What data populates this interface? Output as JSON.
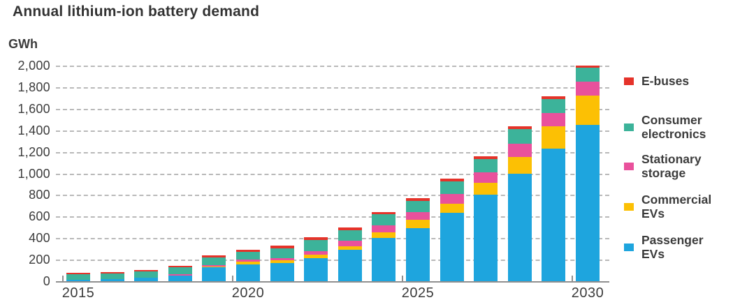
{
  "title": "Annual lithium-ion battery demand",
  "y_axis_unit": "GWh",
  "colors": {
    "passenger_evs": "#1ea5de",
    "commercial_evs": "#fcc004",
    "stationary_storage": "#e9519c",
    "consumer_electronics": "#3cb39a",
    "e_buses": "#e5332a",
    "gridline": "#b9b9b9",
    "axis": "#8f8f8f",
    "text": "#3c3c3c"
  },
  "legend": {
    "items": [
      {
        "label": "E-buses",
        "color": "#e5332a"
      },
      {
        "label": "Consumer electronics",
        "color": "#3cb39a"
      },
      {
        "label": "Stationary storage",
        "color": "#e9519c"
      },
      {
        "label": "Commercial EVs",
        "color": "#fcc004"
      },
      {
        "label": "Passenger EVs",
        "color": "#1ea5de"
      }
    ]
  },
  "chart_data": {
    "type": "bar",
    "stacked": true,
    "title": "Annual lithium-ion battery demand",
    "xlabel": "",
    "ylabel": "GWh",
    "ylim": [
      0,
      2000
    ],
    "ytick_step": 200,
    "ytick_labels": [
      "0",
      "200",
      "400",
      "600",
      "800",
      "1,000",
      "1,200",
      "1,400",
      "1,600",
      "1,800",
      "2,000"
    ],
    "grid": "horizontal-dashed",
    "legend_position": "right",
    "categories": [
      2015,
      2016,
      2017,
      2018,
      2019,
      2020,
      2021,
      2022,
      2023,
      2024,
      2025,
      2026,
      2027,
      2028,
      2029,
      2030
    ],
    "xtick_labels": [
      "2015",
      "2020",
      "2025",
      "2030"
    ],
    "xtick_category_indices": [
      0,
      5,
      10,
      15
    ],
    "series": [
      {
        "name": "Passenger EVs",
        "color": "#1ea5de",
        "values": [
          10,
          20,
          35,
          55,
          130,
          155,
          170,
          215,
          290,
          400,
          490,
          635,
          800,
          1000,
          1230,
          1450
        ]
      },
      {
        "name": "Commercial EVs",
        "color": "#fcc004",
        "values": [
          0,
          0,
          0,
          0,
          5,
          25,
          25,
          30,
          35,
          55,
          80,
          85,
          110,
          150,
          205,
          270
        ]
      },
      {
        "name": "Stationary storage",
        "color": "#e9519c",
        "values": [
          0,
          0,
          0,
          10,
          15,
          20,
          20,
          35,
          50,
          65,
          70,
          90,
          100,
          125,
          125,
          130
        ]
      },
      {
        "name": "Consumer electronics",
        "color": "#3cb39a",
        "values": [
          55,
          50,
          55,
          65,
          70,
          70,
          90,
          100,
          100,
          100,
          105,
          115,
          125,
          135,
          130,
          130
        ]
      },
      {
        "name": "E-buses",
        "color": "#e5332a",
        "values": [
          15,
          15,
          15,
          15,
          20,
          20,
          25,
          25,
          25,
          20,
          25,
          25,
          25,
          25,
          25,
          20
        ]
      }
    ],
    "totals": [
      80,
      85,
      105,
      145,
      240,
      290,
      330,
      405,
      500,
      640,
      770,
      950,
      1160,
      1435,
      1715,
      2000
    ]
  }
}
